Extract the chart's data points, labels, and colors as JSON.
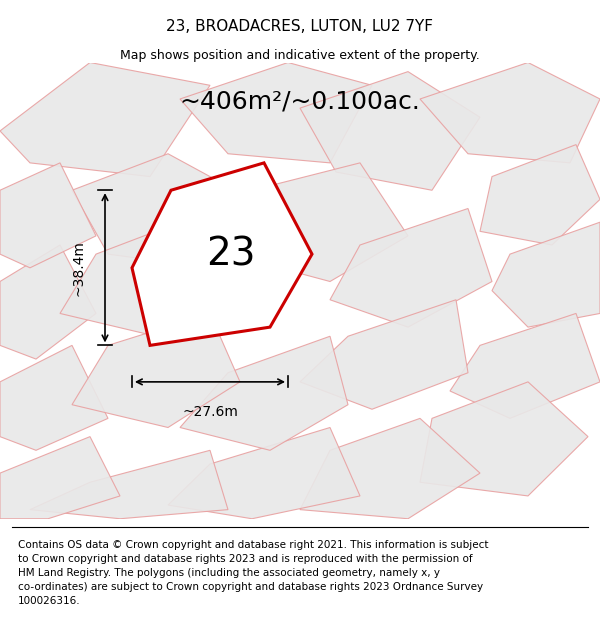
{
  "title": "23, BROADACRES, LUTON, LU2 7YF",
  "subtitle": "Map shows position and indicative extent of the property.",
  "area_text": "~406m²/~0.100ac.",
  "plot_label": "23",
  "dim_h": "~38.4m",
  "dim_w": "~27.6m",
  "footer_lines": "Contains OS data © Crown copyright and database right 2021. This information is subject\nto Crown copyright and database rights 2023 and is reproduced with the permission of\nHM Land Registry. The polygons (including the associated geometry, namely x, y\nco-ordinates) are subject to Crown copyright and database rights 2023 Ordnance Survey\n100026316.",
  "bg_color": "#f5f5f5",
  "map_bg": "#eeeeee",
  "polygon_fill": "#e8e8e8",
  "polygon_edge": "#e8a0a0",
  "highlight_fill": "#ffffff",
  "highlight_edge": "#cc0000",
  "title_fontsize": 11,
  "subtitle_fontsize": 9,
  "area_fontsize": 18,
  "label_fontsize": 28,
  "dim_fontsize": 10,
  "footer_fontsize": 7.5
}
